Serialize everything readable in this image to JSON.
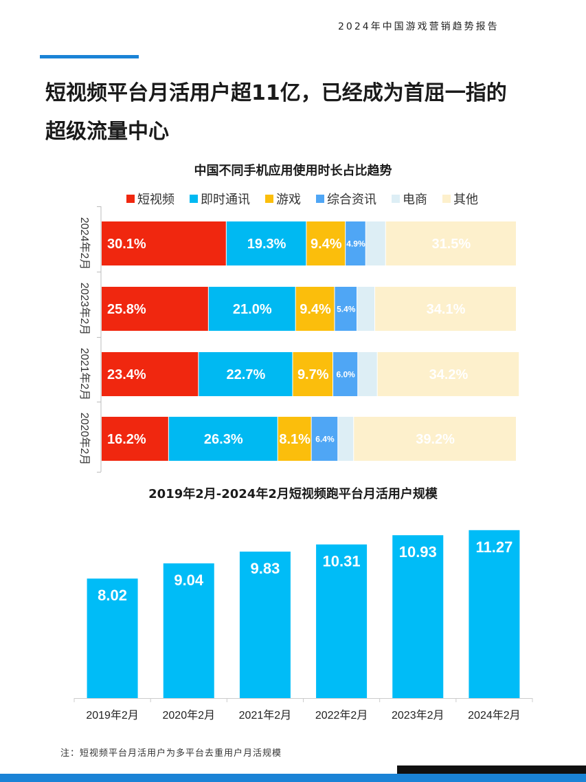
{
  "header": {
    "report_name": "2024年中国游戏营销趋势报告"
  },
  "title": {
    "line1": "短视频平台月活用户超11亿，已经成为首屈一指的",
    "line2": "超级流量中心"
  },
  "note": "注：短视频平台月活用户为多平台去重用户月活规模",
  "colors": {
    "accent": "#1a83d6",
    "短视频": "#f0270f",
    "即时通讯": "#00b9f2",
    "游戏": "#fbbe0c",
    "综合资讯": "#4fa6f5",
    "电商": "#ddeef5",
    "其他": "#fdf0cc",
    "bar2": "#00bcf7"
  },
  "chart_data": [
    {
      "type": "bar",
      "orientation": "horizontal-stacked-100",
      "title": "中国不同手机应用使用时长占比趋势",
      "legend": [
        "短视频",
        "即时通讯",
        "游戏",
        "综合资讯",
        "电商",
        "其他"
      ],
      "legend_position": "top",
      "categories": [
        "2024年2月",
        "2023年2月",
        "2021年2月",
        "2020年2月"
      ],
      "series": [
        {
          "name": "短视频",
          "values": [
            30.1,
            25.8,
            23.4,
            16.2
          ],
          "labels": [
            "30.1%",
            "25.8%",
            "23.4%",
            "16.2%"
          ]
        },
        {
          "name": "即时通讯",
          "values": [
            19.3,
            21.0,
            22.7,
            26.3
          ],
          "labels": [
            "19.3%",
            "21.0%",
            "22.7%",
            "26.3%"
          ]
        },
        {
          "name": "游戏",
          "values": [
            9.4,
            9.4,
            9.7,
            8.1
          ],
          "labels": [
            "9.4%",
            "9.4%",
            "9.7%",
            "8.1%"
          ]
        },
        {
          "name": "综合资讯",
          "values": [
            4.9,
            5.4,
            6.0,
            6.4
          ],
          "labels": [
            "4.9%",
            "5.4%",
            "6.0%",
            "6.4%"
          ]
        },
        {
          "name": "电商",
          "values": [
            4.8,
            4.3,
            4.7,
            3.8
          ],
          "labels": [
            "",
            "",
            "",
            ""
          ]
        },
        {
          "name": "其他",
          "values": [
            31.5,
            34.1,
            34.2,
            39.2
          ],
          "labels": [
            "31.5%",
            "34.1%",
            "34.2%",
            "39.2%"
          ]
        }
      ],
      "xlim": [
        0,
        100
      ]
    },
    {
      "type": "bar",
      "title": "2019年2月-2024年2月短视频跑平台月活用户规模",
      "categories": [
        "2019年2月",
        "2020年2月",
        "2021年2月",
        "2022年2月",
        "2023年2月",
        "2024年2月"
      ],
      "values": [
        8.02,
        9.04,
        9.83,
        10.31,
        10.93,
        11.27
      ],
      "labels": [
        "8.02",
        "9.04",
        "9.83",
        "10.31",
        "10.93",
        "11.27"
      ],
      "ylim": [
        0,
        12
      ],
      "xlabel": "",
      "ylabel": ""
    }
  ]
}
